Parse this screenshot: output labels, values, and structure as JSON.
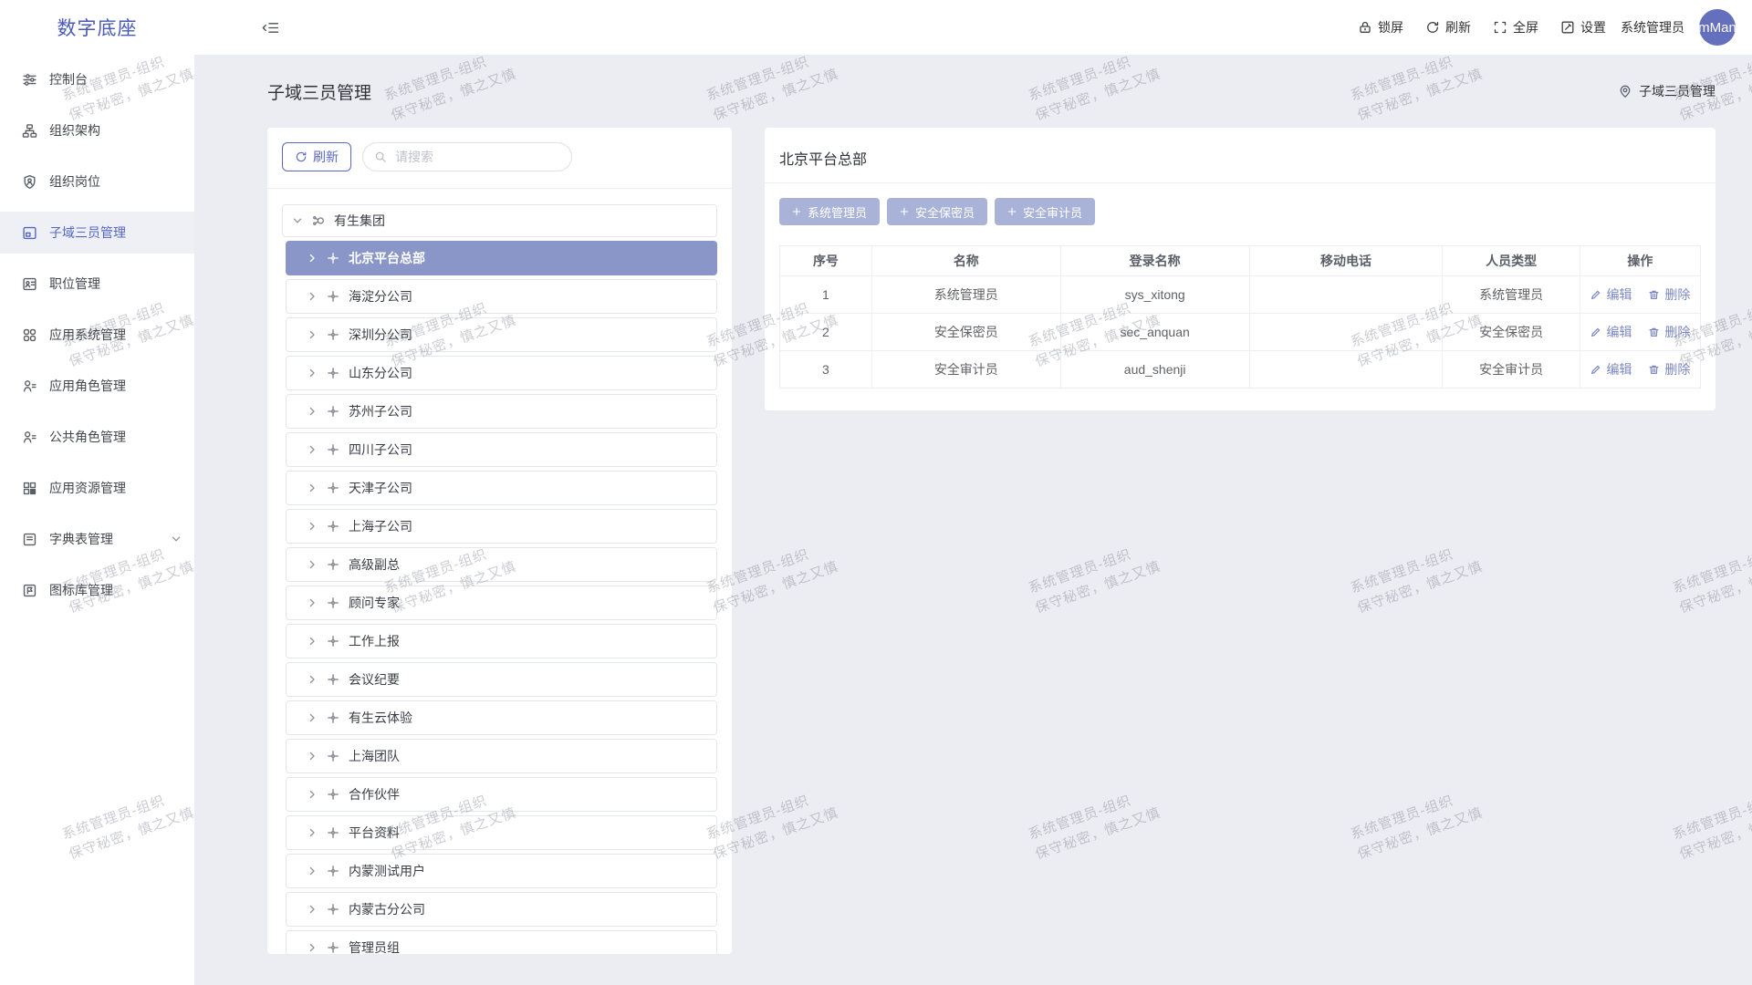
{
  "brand": {
    "logo": "数字底座"
  },
  "topbar": {
    "actions": [
      {
        "icon": "lock",
        "label": "锁屏",
        "name": "lock-screen-action"
      },
      {
        "icon": "refresh",
        "label": "刷新",
        "name": "refresh-action"
      },
      {
        "icon": "fullscreen",
        "label": "全屏",
        "name": "fullscreen-action"
      },
      {
        "icon": "edit-square",
        "label": "设置",
        "name": "settings-action"
      }
    ],
    "username": "系统管理员",
    "avatar_text": "mMan"
  },
  "sidebar": {
    "items": [
      {
        "icon": "console",
        "label": "控制台"
      },
      {
        "icon": "org-structure",
        "label": "组织架构"
      },
      {
        "icon": "org-post",
        "label": "组织岗位"
      },
      {
        "icon": "subdomain",
        "label": "子域三员管理",
        "active": true
      },
      {
        "icon": "position",
        "label": "职位管理"
      },
      {
        "icon": "app-system",
        "label": "应用系统管理"
      },
      {
        "icon": "app-role",
        "label": "应用角色管理"
      },
      {
        "icon": "public-role",
        "label": "公共角色管理"
      },
      {
        "icon": "app-resource",
        "label": "应用资源管理"
      },
      {
        "icon": "dict",
        "label": "字典表管理",
        "expandable": true
      },
      {
        "icon": "icon-lib",
        "label": "图标库管理"
      }
    ]
  },
  "page": {
    "title": "子域三员管理",
    "breadcrumb": "子域三员管理"
  },
  "tree_panel": {
    "refresh_label": "刷新",
    "search_placeholder": "请搜索",
    "root": {
      "label": "有生集团"
    },
    "children": [
      {
        "label": "北京平台总部",
        "selected": true
      },
      {
        "label": "海淀分公司"
      },
      {
        "label": "深圳分公司"
      },
      {
        "label": "山东分公司"
      },
      {
        "label": "苏州子公司"
      },
      {
        "label": "四川子公司"
      },
      {
        "label": "天津子公司"
      },
      {
        "label": "上海子公司"
      },
      {
        "label": "高级副总"
      },
      {
        "label": "顾问专家"
      },
      {
        "label": "工作上报"
      },
      {
        "label": "会议纪要"
      },
      {
        "label": "有生云体验"
      },
      {
        "label": "上海团队"
      },
      {
        "label": "合作伙伴"
      },
      {
        "label": "平台资料"
      },
      {
        "label": "内蒙测试用户"
      },
      {
        "label": "内蒙古分公司"
      },
      {
        "label": "管理员组"
      }
    ]
  },
  "detail_panel": {
    "title": "北京平台总部",
    "add_buttons": [
      {
        "label": "系统管理员"
      },
      {
        "label": "安全保密员"
      },
      {
        "label": "安全审计员"
      }
    ],
    "table": {
      "columns": [
        "序号",
        "名称",
        "登录名称",
        "移动电话",
        "人员类型",
        "操作"
      ],
      "rows": [
        {
          "index": "1",
          "name": "系统管理员",
          "login": "sys_xitong",
          "phone": "",
          "type": "系统管理员"
        },
        {
          "index": "2",
          "name": "安全保密员",
          "login": "sec_anquan",
          "phone": "",
          "type": "安全保密员"
        },
        {
          "index": "3",
          "name": "安全审计员",
          "login": "aud_shenji",
          "phone": "",
          "type": "安全审计员"
        }
      ],
      "edit_label": "编辑",
      "delete_label": "删除"
    }
  },
  "watermark": {
    "line1": "系统管理员-组织",
    "line2": "保守秘密，慎之又慎"
  },
  "colors": {
    "primary": "#4a5ab9",
    "active": "#5566c1",
    "selected_bg": "#8b96c8",
    "button_bg": "#a9b3d8",
    "link": "#7c87c6",
    "content_bg": "#ecedf2"
  }
}
